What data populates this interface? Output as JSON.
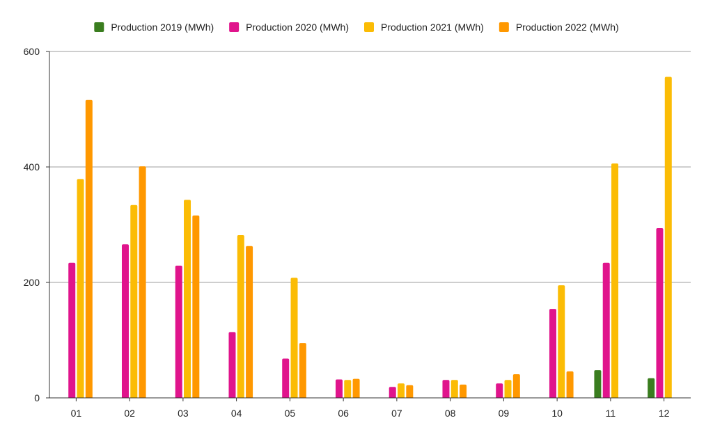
{
  "chart_data": {
    "type": "bar",
    "categories": [
      "01",
      "02",
      "03",
      "04",
      "05",
      "06",
      "07",
      "08",
      "09",
      "10",
      "11",
      "12"
    ],
    "series": [
      {
        "name": "Production 2019 (MWh)",
        "color": "#3a7d1f",
        "values": [
          0,
          0,
          0,
          0,
          0,
          0,
          0,
          0,
          0,
          0,
          48,
          34
        ]
      },
      {
        "name": "Production 2020 (MWh)",
        "color": "#e0148c",
        "values": [
          234,
          266,
          229,
          114,
          68,
          32,
          19,
          31,
          25,
          154,
          234,
          294
        ]
      },
      {
        "name": "Production 2021 (MWh)",
        "color": "#fbbc05",
        "values": [
          379,
          334,
          343,
          282,
          208,
          31,
          25,
          31,
          31,
          195,
          406,
          556
        ]
      },
      {
        "name": "Production 2022 (MWh)",
        "color": "#ff9800",
        "values": [
          516,
          401,
          316,
          263,
          95,
          33,
          22,
          23,
          41,
          46,
          0,
          0
        ]
      }
    ],
    "yticks": [
      0,
      200,
      400,
      600
    ],
    "ylim": [
      0,
      600
    ],
    "grid": true,
    "legend": "top"
  }
}
